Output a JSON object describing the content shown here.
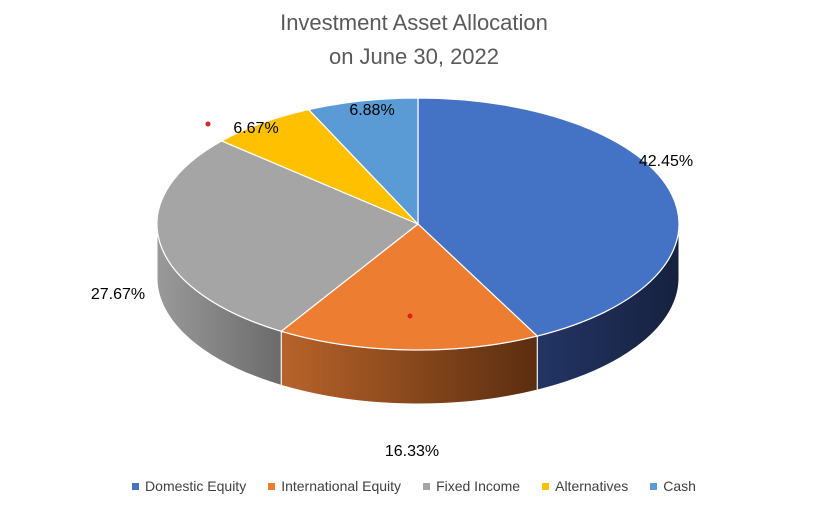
{
  "chart_data": {
    "type": "pie",
    "title_line1": "Investment Asset Allocation",
    "title_line2": "on June 30, 2022",
    "categories": [
      "Domestic Equity",
      "International Equity",
      "Fixed Income",
      "Alternatives",
      "Cash"
    ],
    "values": [
      42.45,
      16.33,
      27.67,
      6.67,
      6.88
    ],
    "labels": [
      "42.45%",
      "16.33%",
      "27.67%",
      "6.67%",
      "6.88%"
    ],
    "colors": [
      "#4472C4",
      "#ED7D31",
      "#A5A5A5",
      "#FFC000",
      "#5B9BD5"
    ],
    "side_colors": [
      "#1F2E57",
      "#8B4513",
      "#7F7F7F",
      "#B38600",
      "#3A6E9E"
    ],
    "legend_position": "bottom",
    "style": "3d-pie"
  }
}
